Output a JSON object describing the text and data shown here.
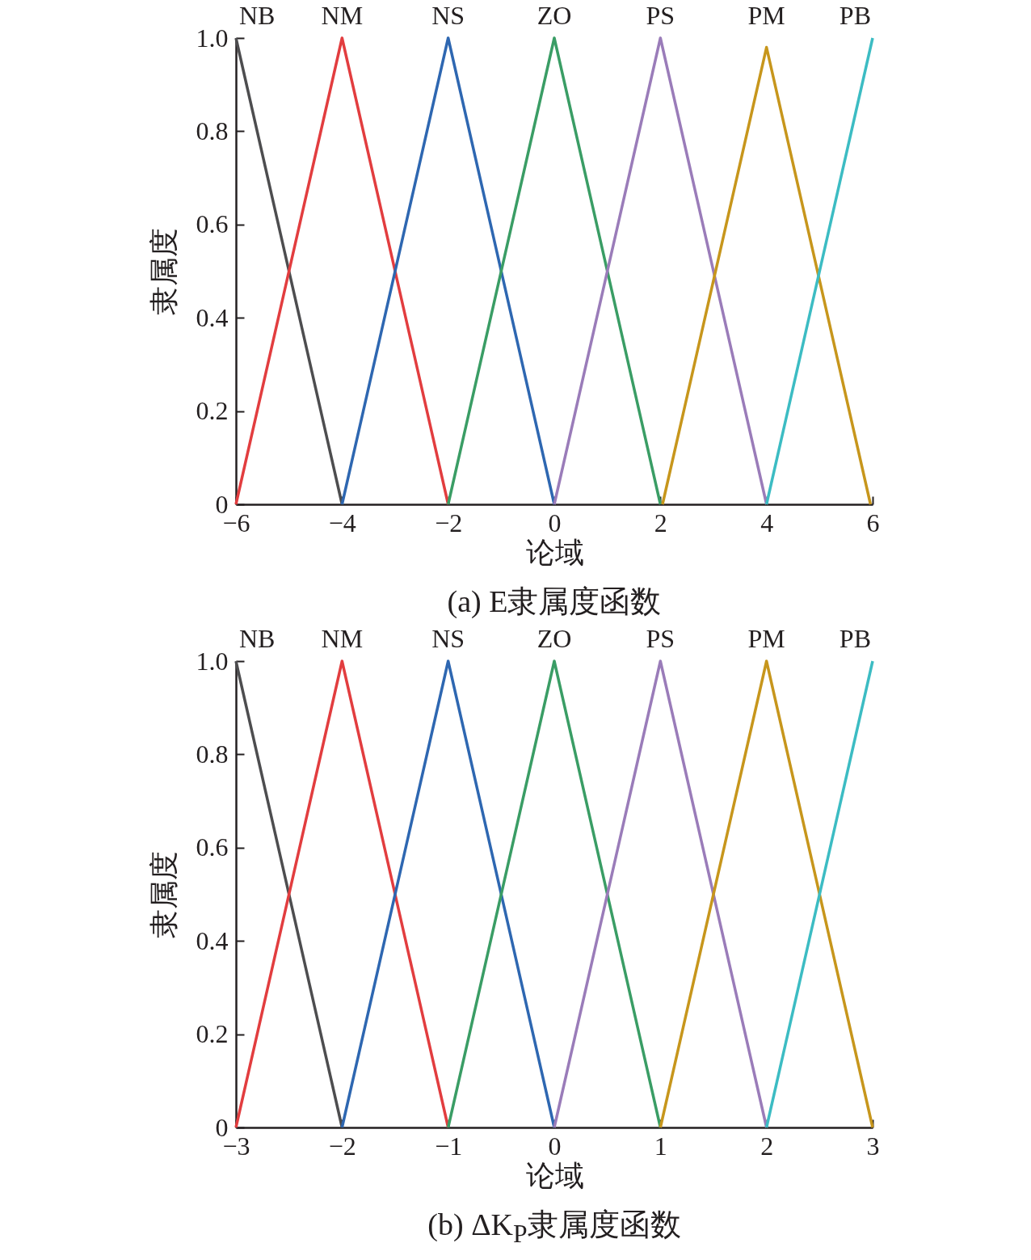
{
  "chart_data": [
    {
      "type": "line",
      "title": "(a) E隶属度函数",
      "xlabel": "论域",
      "ylabel": "隶属度",
      "xlim": [
        -6,
        6
      ],
      "ylim": [
        0,
        1
      ],
      "xticks": [
        -6,
        -4,
        -2,
        0,
        2,
        4,
        6
      ],
      "yticks": [
        0,
        0.2,
        0.4,
        0.6,
        0.8,
        {
          "value": 1,
          "label": "1.0"
        }
      ],
      "grid": false,
      "line_style": "solid",
      "series": [
        {
          "name": "NB",
          "color": "#4d4d4f",
          "x": [
            -6,
            -4
          ],
          "values": [
            1,
            0
          ]
        },
        {
          "name": "NM",
          "color": "#e23d3f",
          "x": [
            -6,
            -4,
            -2
          ],
          "values": [
            0,
            1,
            0
          ]
        },
        {
          "name": "NS",
          "color": "#2e67b1",
          "x": [
            -4,
            -2,
            0
          ],
          "values": [
            0,
            1,
            0
          ]
        },
        {
          "name": "ZO",
          "color": "#3a9d65",
          "x": [
            -2,
            0,
            2
          ],
          "values": [
            0,
            1,
            0
          ]
        },
        {
          "name": "PS",
          "color": "#9a7cb9",
          "x": [
            0,
            2,
            4
          ],
          "values": [
            0,
            1,
            0
          ]
        },
        {
          "name": "PM",
          "color": "#c7961c",
          "x": [
            2.04,
            4,
            5.96
          ],
          "values": [
            0,
            0.98,
            0
          ]
        },
        {
          "name": "PB",
          "color": "#3cbcc3",
          "x": [
            4,
            6
          ],
          "values": [
            0,
            1
          ]
        }
      ]
    },
    {
      "type": "line",
      "title": "(b) ΔK$_{P}$隶属度函数",
      "xlabel": "论域",
      "ylabel": "隶属度",
      "xlim": [
        -3,
        3
      ],
      "ylim": [
        0,
        1
      ],
      "xticks": [
        -3,
        -2,
        -1,
        0,
        1,
        2,
        3
      ],
      "yticks": [
        0,
        0.2,
        0.4,
        0.6,
        0.8,
        {
          "value": 1,
          "label": "1.0"
        }
      ],
      "grid": false,
      "line_style": "solid",
      "series": [
        {
          "name": "NB",
          "color": "#4d4d4f",
          "x": [
            -3,
            -2
          ],
          "values": [
            1,
            0
          ]
        },
        {
          "name": "NM",
          "color": "#e23d3f",
          "x": [
            -3,
            -2,
            -1
          ],
          "values": [
            0,
            1,
            0
          ]
        },
        {
          "name": "NS",
          "color": "#2e67b1",
          "x": [
            -2,
            -1,
            0
          ],
          "values": [
            0,
            1,
            0
          ]
        },
        {
          "name": "ZO",
          "color": "#3a9d65",
          "x": [
            -1,
            0,
            1
          ],
          "values": [
            0,
            1,
            0
          ]
        },
        {
          "name": "PS",
          "color": "#9a7cb9",
          "x": [
            0,
            1,
            2
          ],
          "values": [
            0,
            1,
            0
          ]
        },
        {
          "name": "PM",
          "color": "#c7961c",
          "x": [
            1,
            2,
            3
          ],
          "values": [
            0,
            1,
            0
          ]
        },
        {
          "name": "PB",
          "color": "#3cbcc3",
          "x": [
            2,
            3
          ],
          "values": [
            0,
            1
          ]
        }
      ]
    }
  ]
}
